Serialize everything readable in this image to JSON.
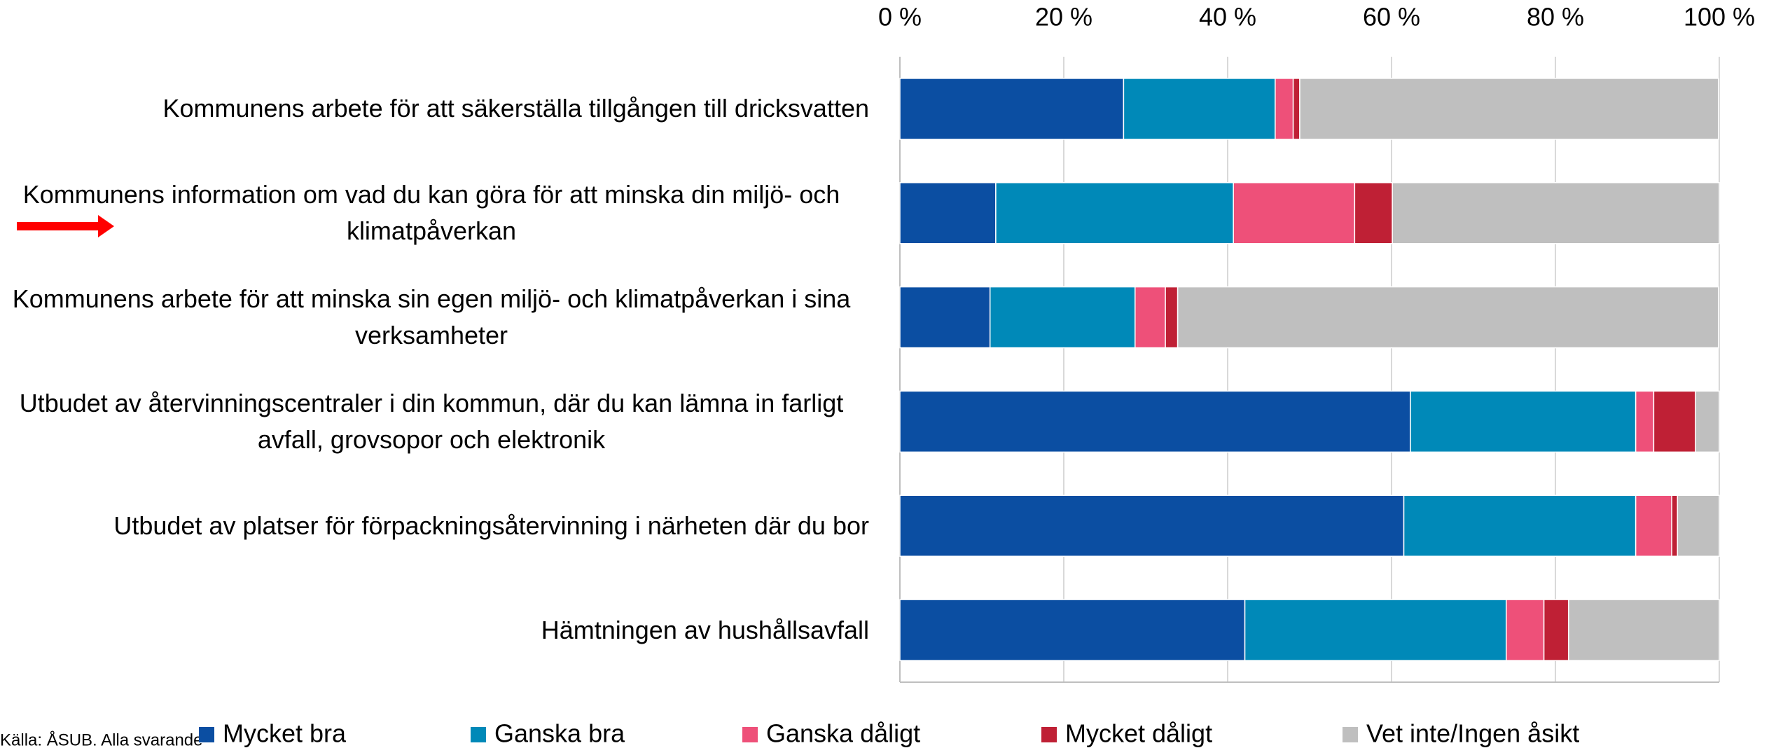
{
  "chart_data": {
    "type": "stacked_barh",
    "categories": [
      "Kommunens arbete för att säkerställa tillgången till dricksvatten",
      "Kommunens information om vad du kan göra för att minska din miljö- och klimatpåverkan",
      "Kommunens arbete för att minska sin egen miljö- och klimatpåverkan i sina verksamheter",
      "Utbudet av återvinningscentraler i din kommun, där du kan lämna in farligt avfall, grovsopor och elektronik",
      "Utbudet av platser för förpackningsåtervinning i närheten där du bor",
      "Hämtningen av hushållsavfall"
    ],
    "series": [
      {
        "name": "Mycket bra",
        "color": "#0b4ea2",
        "values": [
          27.3,
          11.7,
          11.0,
          62.3,
          61.5,
          42.1
        ]
      },
      {
        "name": "Ganska bra",
        "color": "#0089b8",
        "values": [
          18.5,
          29.0,
          17.7,
          27.5,
          28.3,
          31.9
        ]
      },
      {
        "name": "Ganska dåligt",
        "color": "#ee5079",
        "values": [
          2.2,
          14.8,
          3.7,
          2.2,
          4.4,
          4.6
        ]
      },
      {
        "name": "Mycket dåligt",
        "color": "#bf2035",
        "values": [
          0.8,
          4.6,
          1.5,
          5.1,
          0.7,
          3.0
        ]
      },
      {
        "name": "Vet inte/Ingen åsikt",
        "color": "#bfbfbf",
        "values": [
          51.1,
          39.9,
          66.0,
          2.9,
          5.1,
          18.4
        ]
      }
    ],
    "xlim": [
      0,
      100
    ],
    "xticks": [
      {
        "value": 0,
        "label": "0 %"
      },
      {
        "value": 20,
        "label": "20 %"
      },
      {
        "value": 40,
        "label": "40 %"
      },
      {
        "value": 60,
        "label": "60 %"
      },
      {
        "value": 80,
        "label": "80 %"
      },
      {
        "value": 100,
        "label": "100 %"
      }
    ],
    "grid": true,
    "legend": "bottom",
    "source": "Källa: ÅSUB. Alla svarande"
  }
}
